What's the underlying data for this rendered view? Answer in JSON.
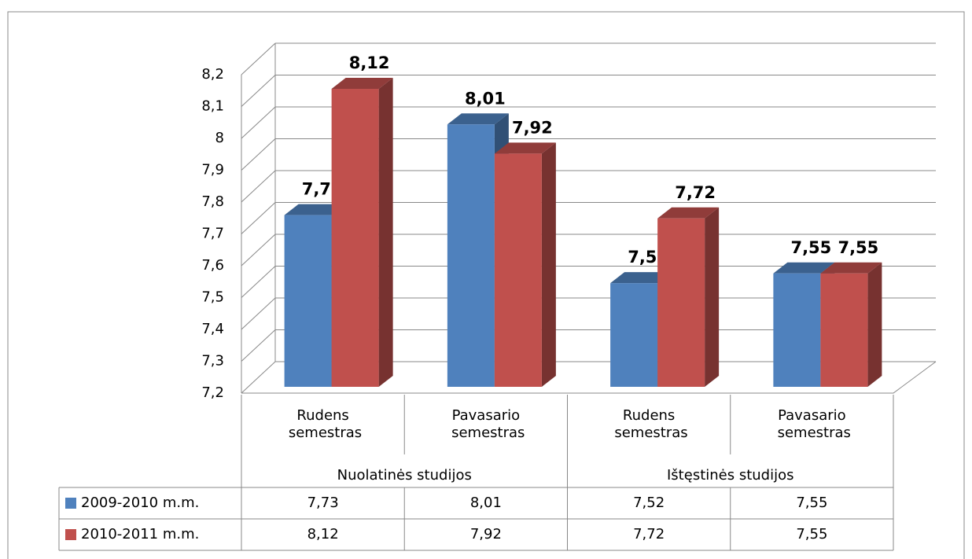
{
  "chart_data": {
    "type": "bar3d",
    "categories": [
      "Rudens semestras",
      "Pavasario semestras",
      "Rudens semestras",
      "Pavasario semestras"
    ],
    "groups": [
      "Nuolatinės studijos",
      "Ištęstinės studijos"
    ],
    "series": [
      {
        "name": "2009-2010 m.m.",
        "color": "#4f81bd",
        "values": [
          7.73,
          8.01,
          7.52,
          7.55
        ],
        "value_labels": [
          "7,73",
          "8,01",
          "7,52",
          "7,55"
        ]
      },
      {
        "name": "2010-2011 m.m.",
        "color": "#c0504d",
        "values": [
          8.12,
          7.92,
          7.72,
          7.55
        ],
        "value_labels": [
          "8,12",
          "7,92",
          "7,72",
          "7,55"
        ]
      }
    ],
    "ylim": [
      7.2,
      8.2
    ],
    "yticks": [
      {
        "value": 7.2,
        "label": "7,2"
      },
      {
        "value": 7.3,
        "label": "7,3"
      },
      {
        "value": 7.4,
        "label": "7,4"
      },
      {
        "value": 7.5,
        "label": "7,5"
      },
      {
        "value": 7.6,
        "label": "7,6"
      },
      {
        "value": 7.7,
        "label": "7,7"
      },
      {
        "value": 7.8,
        "label": "7,8"
      },
      {
        "value": 7.9,
        "label": "7,9"
      },
      8,
      {
        "value": 8.1,
        "label": "8,1"
      },
      {
        "value": 8.2,
        "label": "8,2"
      }
    ],
    "grid": true,
    "data_table": true
  }
}
